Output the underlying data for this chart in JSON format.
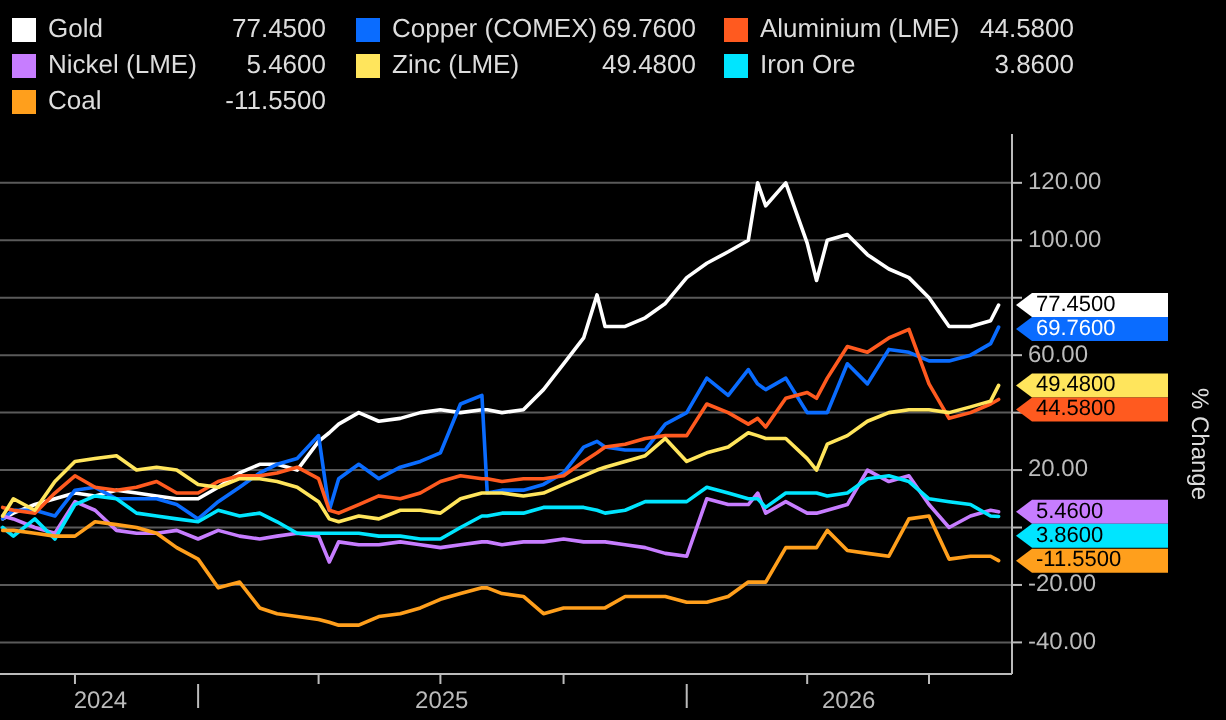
{
  "chart_data": {
    "type": "line",
    "ylabel": "% Change",
    "legend": "top",
    "grid": "y",
    "xlim": [
      "2024-08-06",
      "2026-09-01"
    ],
    "ylim": [
      -51,
      137
    ],
    "xticks": [
      {
        "value": "2024-10-01",
        "label": null
      },
      {
        "value": "2024-10-20",
        "label": "2024"
      },
      {
        "value": "2025-01-01",
        "label": null
      },
      {
        "value": "2025-04-01",
        "label": null
      },
      {
        "value": "2025-07-01",
        "label": null
      },
      {
        "value": "2025-07-02",
        "label": "2025"
      },
      {
        "value": "2025-10-01",
        "label": null
      },
      {
        "value": "2026-01-01",
        "label": null
      },
      {
        "value": "2026-04-01",
        "label": null
      },
      {
        "value": "2026-05-02",
        "label": "2026"
      },
      {
        "value": "2026-07-01",
        "label": null
      }
    ],
    "yticks": [
      {
        "value": -40,
        "label": "-40.00"
      },
      {
        "value": -20,
        "label": "-20.00"
      },
      {
        "value": 0,
        "label": null
      },
      {
        "value": 20,
        "label": "20.00"
      },
      {
        "value": 40,
        "label": null
      },
      {
        "value": 60,
        "label": "60.00"
      },
      {
        "value": 80,
        "label": null
      },
      {
        "value": 100,
        "label": "100.00"
      },
      {
        "value": 120,
        "label": "120.00"
      }
    ],
    "x": [
      "2024-08-08",
      "2024-08-16",
      "2024-09-01",
      "2024-09-16",
      "2024-10-01",
      "2024-10-16",
      "2024-11-01",
      "2024-11-16",
      "2024-12-01",
      "2024-12-16",
      "2025-01-01",
      "2025-01-16",
      "2025-02-01",
      "2025-02-16",
      "2025-03-01",
      "2025-03-16",
      "2025-04-01",
      "2025-04-09",
      "2025-04-16",
      "2025-05-01",
      "2025-05-16",
      "2025-06-01",
      "2025-06-16",
      "2025-07-01",
      "2025-07-16",
      "2025-08-01",
      "2025-08-05",
      "2025-08-16",
      "2025-09-01",
      "2025-09-16",
      "2025-10-01",
      "2025-10-16",
      "2025-10-26",
      "2025-11-01",
      "2025-11-16",
      "2025-12-01",
      "2025-12-16",
      "2026-01-01",
      "2026-01-16",
      "2026-02-01",
      "2026-02-16",
      "2026-02-23",
      "2026-03-01",
      "2026-03-16",
      "2026-04-01",
      "2026-04-08",
      "2026-04-16",
      "2026-05-01",
      "2026-05-16",
      "2026-06-01",
      "2026-06-16",
      "2026-07-01",
      "2026-07-16",
      "2026-08-01",
      "2026-08-16",
      "2026-08-22"
    ],
    "series": [
      {
        "name": "Gold",
        "color": "#ffffff",
        "values": [
          3,
          5,
          8,
          10,
          12,
          11,
          13,
          12,
          11,
          10,
          10,
          14,
          19,
          22,
          22,
          20,
          30,
          33,
          36,
          40,
          37,
          38,
          40,
          41,
          40,
          41,
          41,
          40,
          41,
          48,
          57,
          66,
          81,
          70,
          70,
          73,
          78,
          87,
          92,
          96,
          100,
          120,
          112,
          120,
          99,
          86,
          100,
          102,
          95,
          90,
          87,
          80,
          70,
          70,
          72,
          77.45
        ],
        "value_labels": [
          null,
          null,
          null,
          null,
          null,
          null,
          null,
          null,
          null,
          null,
          null,
          null,
          null,
          null,
          null,
          null,
          null,
          null,
          null,
          null,
          null,
          null,
          null,
          null,
          null,
          null,
          null,
          null,
          null,
          null,
          null,
          null,
          null,
          null,
          null,
          null,
          null,
          null,
          null,
          null,
          null,
          null,
          null,
          null,
          null,
          null,
          null,
          null,
          null,
          null,
          null,
          null,
          null,
          null,
          null,
          "77.4500"
        ]
      },
      {
        "name": "Copper (COMEX)",
        "color": "#0a6cff",
        "values": [
          3,
          6,
          6,
          4,
          13,
          14,
          10,
          10,
          10,
          8,
          3,
          9,
          14,
          19,
          22,
          24,
          32,
          6,
          17,
          22,
          17,
          21,
          23,
          26,
          43,
          46,
          12,
          13,
          13,
          15,
          19,
          28,
          30,
          28,
          27,
          27,
          36,
          40,
          52,
          46,
          55,
          50,
          48,
          52,
          40,
          40,
          40,
          57,
          50,
          62,
          61,
          58,
          58,
          60,
          64,
          69.76
        ],
        "value_labels": [
          null,
          null,
          null,
          null,
          null,
          null,
          null,
          null,
          null,
          null,
          null,
          null,
          null,
          null,
          null,
          null,
          null,
          null,
          null,
          null,
          null,
          null,
          null,
          null,
          null,
          null,
          null,
          null,
          null,
          null,
          null,
          null,
          null,
          null,
          null,
          null,
          null,
          null,
          null,
          null,
          null,
          null,
          null,
          null,
          null,
          null,
          null,
          null,
          null,
          null,
          null,
          null,
          null,
          null,
          null,
          "69.7600"
        ]
      },
      {
        "name": "Aluminium (LME)",
        "color": "#ff5a1f",
        "values": [
          7,
          6,
          5,
          12,
          18,
          14,
          13,
          14,
          16,
          12,
          12,
          16,
          18,
          18,
          19,
          21,
          17,
          6,
          5,
          8,
          11,
          10,
          12,
          16,
          18,
          17,
          17,
          16,
          17,
          17,
          18,
          23,
          26,
          28,
          29,
          31,
          32,
          32,
          43,
          40,
          36,
          38,
          35,
          45,
          47,
          45,
          52,
          63,
          61,
          66,
          69,
          50,
          38,
          40,
          43,
          44.58
        ],
        "value_labels": [
          null,
          null,
          null,
          null,
          null,
          null,
          null,
          null,
          null,
          null,
          null,
          null,
          null,
          null,
          null,
          null,
          null,
          null,
          null,
          null,
          null,
          null,
          null,
          null,
          null,
          null,
          null,
          null,
          null,
          null,
          null,
          null,
          null,
          null,
          null,
          null,
          null,
          null,
          null,
          null,
          null,
          null,
          null,
          null,
          null,
          null,
          null,
          null,
          null,
          null,
          null,
          null,
          null,
          null,
          null,
          "44.5800"
        ]
      },
      {
        "name": "Nickel (LME)",
        "color": "#c77dff",
        "values": [
          4,
          3,
          0,
          -2,
          9,
          6,
          -1,
          -2,
          -2,
          -1,
          -4,
          -1,
          -3,
          -4,
          -3,
          -2,
          -3,
          -12,
          -5,
          -6,
          -6,
          -5,
          -6,
          -7,
          -6,
          -5,
          -5,
          -6,
          -5,
          -5,
          -4,
          -5,
          -5,
          -5,
          -6,
          -7,
          -9,
          -10,
          10,
          8,
          8,
          12,
          5,
          9,
          5,
          5,
          6,
          8,
          20,
          16,
          18,
          8,
          0,
          4,
          6,
          5.46
        ],
        "value_labels": [
          null,
          null,
          null,
          null,
          null,
          null,
          null,
          null,
          null,
          null,
          null,
          null,
          null,
          null,
          null,
          null,
          null,
          null,
          null,
          null,
          null,
          null,
          null,
          null,
          null,
          null,
          null,
          null,
          null,
          null,
          null,
          null,
          null,
          null,
          null,
          null,
          null,
          null,
          null,
          null,
          null,
          null,
          null,
          null,
          null,
          null,
          null,
          null,
          null,
          null,
          null,
          null,
          null,
          null,
          null,
          "5.4600"
        ]
      },
      {
        "name": "Zinc (LME)",
        "color": "#ffe55c",
        "values": [
          4,
          10,
          6,
          16,
          23,
          24,
          25,
          20,
          21,
          20,
          15,
          14,
          17,
          17,
          16,
          14,
          9,
          3,
          2,
          4,
          3,
          6,
          6,
          5,
          10,
          12,
          12,
          12,
          11,
          12,
          15,
          18,
          20,
          21,
          23,
          25,
          31,
          23,
          26,
          28,
          33,
          32,
          31,
          31,
          24,
          20,
          29,
          32,
          37,
          40,
          41,
          41,
          40,
          42,
          44,
          49.48
        ],
        "value_labels": [
          null,
          null,
          null,
          null,
          null,
          null,
          null,
          null,
          null,
          null,
          null,
          null,
          null,
          null,
          null,
          null,
          null,
          null,
          null,
          null,
          null,
          null,
          null,
          null,
          null,
          null,
          null,
          null,
          null,
          null,
          null,
          null,
          null,
          null,
          null,
          null,
          null,
          null,
          null,
          null,
          null,
          null,
          null,
          null,
          null,
          null,
          null,
          null,
          null,
          null,
          null,
          null,
          null,
          null,
          null,
          "49.4800"
        ]
      },
      {
        "name": "Iron Ore",
        "color": "#00e5ff",
        "values": [
          0,
          -3,
          3,
          -4,
          8,
          11,
          10,
          5,
          4,
          3,
          2,
          6,
          4,
          5,
          2,
          -2,
          -2,
          -2,
          -2,
          -2,
          -3,
          -3,
          -4,
          -4,
          0,
          4,
          4,
          5,
          5,
          7,
          7,
          7,
          6,
          5,
          6,
          9,
          9,
          9,
          14,
          12,
          10,
          10,
          7,
          12,
          12,
          12,
          11,
          12,
          17,
          18,
          16,
          10,
          9,
          8,
          4,
          3.86
        ],
        "value_labels": [
          null,
          null,
          null,
          null,
          null,
          null,
          null,
          null,
          null,
          null,
          null,
          null,
          null,
          null,
          null,
          null,
          null,
          null,
          null,
          null,
          null,
          null,
          null,
          null,
          null,
          null,
          null,
          null,
          null,
          null,
          null,
          null,
          null,
          null,
          null,
          null,
          null,
          null,
          null,
          null,
          null,
          null,
          null,
          null,
          null,
          null,
          null,
          null,
          null,
          null,
          null,
          null,
          null,
          null,
          null,
          "3.8600"
        ]
      },
      {
        "name": "Coal",
        "color": "#ff9f1c",
        "values": [
          -1,
          -1,
          -2,
          -3,
          -3,
          2,
          1,
          0,
          -2,
          -7,
          -11,
          -21,
          -19,
          -28,
          -30,
          -31,
          -32,
          -33,
          -34,
          -34,
          -31,
          -30,
          -28,
          -25,
          -23,
          -21,
          -21,
          -23,
          -24,
          -30,
          -28,
          -28,
          -28,
          -28,
          -24,
          -24,
          -24,
          -26,
          -26,
          -24,
          -19,
          -19,
          -19,
          -7,
          -7,
          -7,
          -1,
          -8,
          -9,
          -10,
          3,
          4,
          -11,
          -10,
          -10,
          -11.55
        ],
        "value_labels": [
          null,
          null,
          null,
          null,
          null,
          null,
          null,
          null,
          null,
          null,
          null,
          null,
          null,
          null,
          null,
          null,
          null,
          null,
          null,
          null,
          null,
          null,
          null,
          null,
          null,
          null,
          null,
          null,
          null,
          null,
          null,
          null,
          null,
          null,
          null,
          null,
          null,
          null,
          null,
          null,
          null,
          null,
          null,
          null,
          null,
          null,
          null,
          null,
          null,
          null,
          null,
          null,
          null,
          null,
          null,
          "-11.5500"
        ]
      }
    ]
  }
}
